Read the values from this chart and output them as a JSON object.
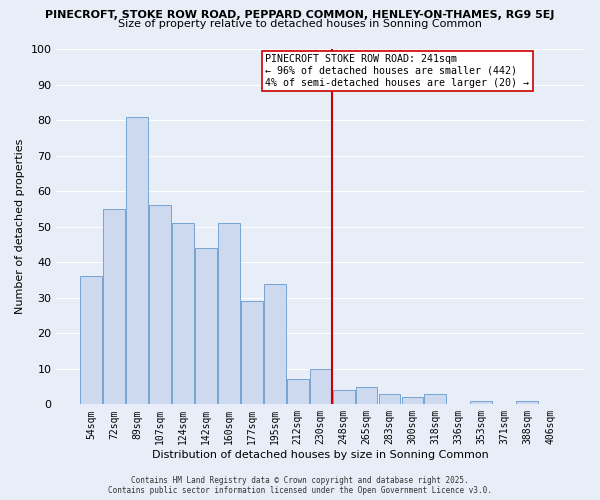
{
  "title_line1": "PINECROFT, STOKE ROW ROAD, PEPPARD COMMON, HENLEY-ON-THAMES, RG9 5EJ",
  "title_line2": "Size of property relative to detached houses in Sonning Common",
  "xlabel": "Distribution of detached houses by size in Sonning Common",
  "ylabel": "Number of detached properties",
  "bar_labels": [
    "54sqm",
    "72sqm",
    "89sqm",
    "107sqm",
    "124sqm",
    "142sqm",
    "160sqm",
    "177sqm",
    "195sqm",
    "212sqm",
    "230sqm",
    "248sqm",
    "265sqm",
    "283sqm",
    "300sqm",
    "318sqm",
    "336sqm",
    "353sqm",
    "371sqm",
    "388sqm",
    "406sqm"
  ],
  "bar_values": [
    36,
    55,
    81,
    56,
    51,
    44,
    51,
    29,
    34,
    7,
    10,
    4,
    5,
    3,
    2,
    3,
    0,
    1,
    0,
    1,
    0
  ],
  "bar_color": "#ccd9ee",
  "bar_edge_color": "#6699cc",
  "vline_color": "#cc0000",
  "ylim": [
    0,
    100
  ],
  "yticks": [
    0,
    10,
    20,
    30,
    40,
    50,
    60,
    70,
    80,
    90,
    100
  ],
  "annotation_title": "PINECROFT STOKE ROW ROAD: 241sqm",
  "annotation_line2": "← 96% of detached houses are smaller (442)",
  "annotation_line3": "4% of semi-detached houses are larger (20) →",
  "footer_line1": "Contains HM Land Registry data © Crown copyright and database right 2025.",
  "footer_line2": "Contains public sector information licensed under the Open Government Licence v3.0.",
  "background_color": "#e8eef8",
  "grid_color": "#ffffff"
}
